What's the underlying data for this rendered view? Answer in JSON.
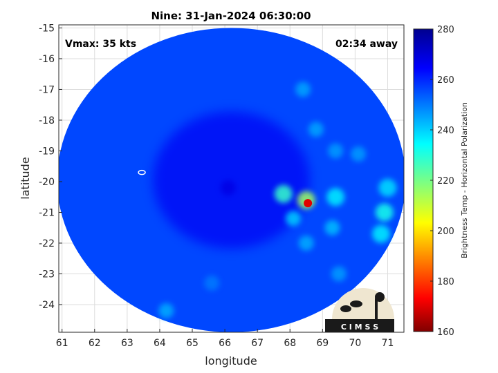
{
  "chart_data": {
    "type": "heatmap",
    "title": "Nine: 31-Jan-2024 06:30:00",
    "xlabel": "longitude",
    "ylabel": "latitude",
    "xlim": [
      60.9,
      71.5
    ],
    "ylim": [
      -24.9,
      -14.9
    ],
    "xticks": [
      "61",
      "62",
      "63",
      "64",
      "65",
      "66",
      "67",
      "68",
      "69",
      "70",
      "71"
    ],
    "yticks": [
      "-15",
      "-16",
      "-17",
      "-18",
      "-19",
      "-20",
      "-21",
      "-22",
      "-23",
      "-24"
    ],
    "grid": true,
    "annotations": {
      "vmax": "Vmax: 35 kts",
      "time_offset": "02:34 away"
    },
    "colorbar": {
      "label": "Brightness Temp - Horizontal Polarization",
      "range": [
        160,
        280
      ],
      "ticks": [
        "160",
        "180",
        "200",
        "220",
        "240",
        "260",
        "280"
      ],
      "colormap": "jet"
    },
    "swath": {
      "center_lon": 66.2,
      "center_lat": -19.95,
      "half_width_lon": 5.35,
      "half_height_lat": 4.95,
      "background_value": 262
    },
    "features": [
      {
        "lon": 68.55,
        "lat": -20.7,
        "value": 170,
        "note": "coldest core"
      },
      {
        "lon": 68.5,
        "lat": -20.6,
        "value": 215
      },
      {
        "lon": 67.8,
        "lat": -20.4,
        "value": 228
      },
      {
        "lon": 68.1,
        "lat": -21.2,
        "value": 240
      },
      {
        "lon": 69.4,
        "lat": -20.5,
        "value": 236
      },
      {
        "lon": 69.3,
        "lat": -21.5,
        "value": 242
      },
      {
        "lon": 68.5,
        "lat": -22.0,
        "value": 244
      },
      {
        "lon": 70.9,
        "lat": -21.0,
        "value": 232
      },
      {
        "lon": 71.0,
        "lat": -20.2,
        "value": 238
      },
      {
        "lon": 70.8,
        "lat": -21.7,
        "value": 236
      },
      {
        "lon": 69.5,
        "lat": -23.0,
        "value": 246
      },
      {
        "lon": 68.4,
        "lat": -17.0,
        "value": 245
      },
      {
        "lon": 68.8,
        "lat": -18.3,
        "value": 245
      },
      {
        "lon": 69.4,
        "lat": -19.0,
        "value": 246
      },
      {
        "lon": 70.1,
        "lat": -19.1,
        "value": 246
      },
      {
        "lon": 64.2,
        "lat": -24.2,
        "value": 244
      },
      {
        "lon": 65.6,
        "lat": -23.3,
        "value": 250
      },
      {
        "lon": 66.1,
        "lat": -20.2,
        "value": 268
      }
    ],
    "contour": {
      "lon": 63.45,
      "lat": -19.7,
      "note": "small white contour"
    }
  },
  "logo": {
    "text": "C I M S S"
  }
}
